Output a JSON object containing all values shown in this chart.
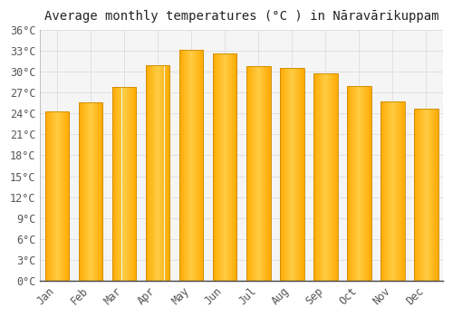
{
  "title": "Average monthly temperatures (°C ) in Nāravārikuppam",
  "months": [
    "Jan",
    "Feb",
    "Mar",
    "Apr",
    "May",
    "Jun",
    "Jul",
    "Aug",
    "Sep",
    "Oct",
    "Nov",
    "Dec"
  ],
  "temperatures": [
    24.3,
    25.6,
    27.8,
    30.9,
    33.2,
    32.6,
    30.8,
    30.6,
    29.8,
    28.0,
    25.8,
    24.7
  ],
  "bar_color_face": "#FFAA00",
  "bar_color_light": "#FFD966",
  "bar_color_edge": "#CC8800",
  "background_color": "#FFFFFF",
  "plot_bg_color": "#F5F5F5",
  "grid_color": "#DDDDDD",
  "ylim": [
    0,
    36
  ],
  "ytick_step": 3,
  "title_fontsize": 10,
  "tick_fontsize": 8.5,
  "figsize": [
    5.0,
    3.5
  ],
  "dpi": 100
}
